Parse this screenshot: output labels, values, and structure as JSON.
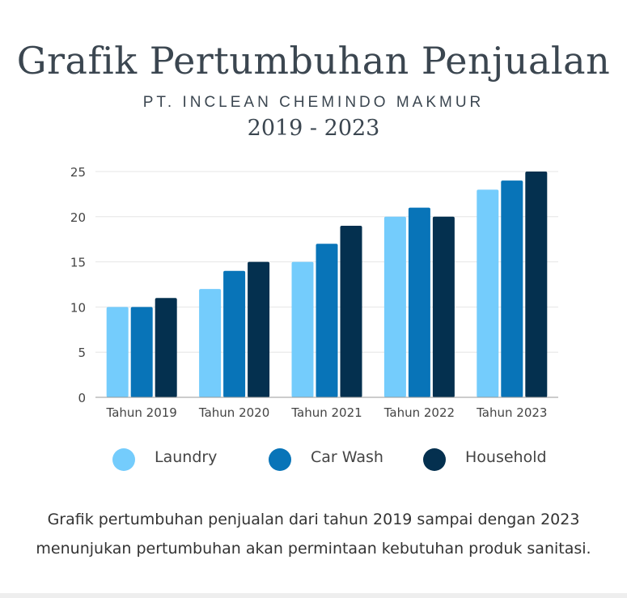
{
  "title": "Grafik Pertumbuhan Penjualan",
  "subtitle": "PT. INCLEAN CHEMINDO MAKMUR",
  "years": "2019 - 2023",
  "caption": {
    "line1": "Grafik pertumbuhan penjualan dari tahun 2019 sampai dengan 2023",
    "line2": "menunjukan pertumbuhan akan permintaan kebutuhan produk sanitasi."
  },
  "colors": {
    "laundry": "#74ccfc",
    "car_wash": "#0874b8",
    "household": "#04304f",
    "grid": "#e6e6e6",
    "axis": "#999999",
    "text": "#444444"
  },
  "legend": [
    {
      "label": "Laundry",
      "color": "#74ccfc"
    },
    {
      "label": "Car Wash",
      "color": "#0874b8"
    },
    {
      "label": "Household",
      "color": "#04304f"
    }
  ],
  "chart_data": {
    "type": "bar",
    "title": "Grafik Pertumbuhan Penjualan",
    "subtitle": "PT. INCLEAN CHEMINDO MAKMUR 2019 - 2023",
    "categories": [
      "Tahun 2019",
      "Tahun 2020",
      "Tahun 2021",
      "Tahun 2022",
      "Tahun 2023"
    ],
    "series": [
      {
        "name": "Laundry",
        "values": [
          10,
          12,
          15,
          20,
          23
        ]
      },
      {
        "name": "Car Wash",
        "values": [
          10,
          14,
          17,
          21,
          24
        ]
      },
      {
        "name": "Household",
        "values": [
          11,
          15,
          19,
          20,
          25
        ]
      }
    ],
    "xlabel": "",
    "ylabel": "",
    "ylim": [
      0,
      25
    ],
    "yticks": [
      0,
      5,
      10,
      15,
      20,
      25
    ],
    "grid": true,
    "legend_position": "bottom"
  }
}
